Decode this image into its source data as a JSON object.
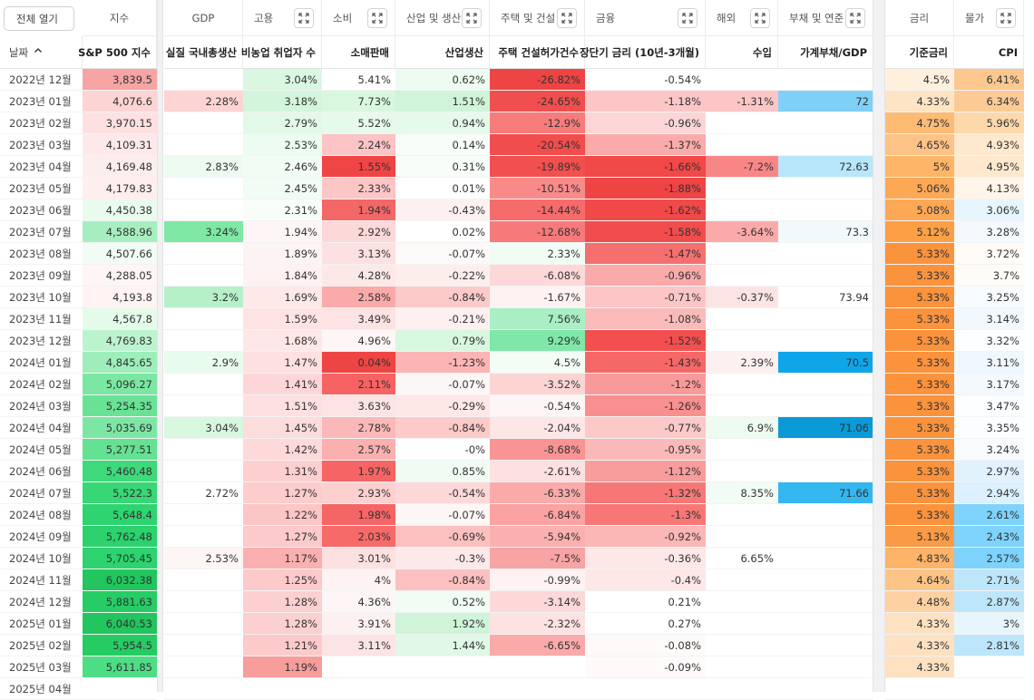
{
  "toolbar": {
    "open_all_label": "전체 열기"
  },
  "groups": [
    {
      "label": "지수",
      "expand": false
    },
    {
      "label": "GDP",
      "expand": false
    },
    {
      "label": "고용",
      "expand": true
    },
    {
      "label": "소비",
      "expand": true
    },
    {
      "label": "산업 및 생산",
      "expand": true
    },
    {
      "label": "주택 및 건설",
      "expand": true
    },
    {
      "label": "금융",
      "expand": true
    },
    {
      "label": "해외",
      "expand": true
    },
    {
      "label": "부채 및 연준",
      "expand": true
    },
    {
      "label": "금리",
      "expand": false
    },
    {
      "label": "물가",
      "expand": true
    }
  ],
  "columns": [
    "날짜",
    "S&P 500 지수",
    "실질 국내총생산",
    "비농업 취업자 수",
    "소매판매",
    "산업생산",
    "주택 건설허가건수",
    "장단기 금리 (10년-3개월)",
    "수입",
    "가계부채/GDP",
    "기준금리",
    "CPI"
  ],
  "sort_icon": "chevron-up-icon",
  "rows": [
    [
      "2022년 12월",
      "3,839.5",
      "",
      "3.04%",
      "5.41%",
      "0.62%",
      "-26.82%",
      "-0.54%",
      "",
      "",
      "4.5%",
      "6.41%"
    ],
    [
      "2023년 01월",
      "4,076.6",
      "2.28%",
      "3.18%",
      "7.73%",
      "1.51%",
      "-24.65%",
      "-1.18%",
      "-1.31%",
      "72",
      "4.33%",
      "6.34%"
    ],
    [
      "2023년 02월",
      "3,970.15",
      "",
      "2.79%",
      "5.52%",
      "0.94%",
      "-12.9%",
      "-0.96%",
      "",
      "",
      "4.75%",
      "5.96%"
    ],
    [
      "2023년 03월",
      "4,109.31",
      "",
      "2.53%",
      "2.24%",
      "0.14%",
      "-20.54%",
      "-1.37%",
      "",
      "",
      "4.65%",
      "4.93%"
    ],
    [
      "2023년 04월",
      "4,169.48",
      "2.83%",
      "2.46%",
      "1.55%",
      "0.31%",
      "-19.89%",
      "-1.66%",
      "-7.2%",
      "72.63",
      "5%",
      "4.95%"
    ],
    [
      "2023년 05월",
      "4,179.83",
      "",
      "2.45%",
      "2.33%",
      "0.01%",
      "-10.51%",
      "-1.88%",
      "",
      "",
      "5.06%",
      "4.13%"
    ],
    [
      "2023년 06월",
      "4,450.38",
      "",
      "2.31%",
      "1.94%",
      "-0.43%",
      "-14.44%",
      "-1.62%",
      "",
      "",
      "5.08%",
      "3.06%"
    ],
    [
      "2023년 07월",
      "4,588.96",
      "3.24%",
      "1.94%",
      "2.92%",
      "0.02%",
      "-12.68%",
      "-1.58%",
      "-3.64%",
      "73.3",
      "5.12%",
      "3.28%"
    ],
    [
      "2023년 08월",
      "4,507.66",
      "",
      "1.89%",
      "3.13%",
      "-0.07%",
      "2.33%",
      "-1.47%",
      "",
      "",
      "5.33%",
      "3.72%"
    ],
    [
      "2023년 09월",
      "4,288.05",
      "",
      "1.84%",
      "4.28%",
      "-0.22%",
      "-6.08%",
      "-0.96%",
      "",
      "",
      "5.33%",
      "3.7%"
    ],
    [
      "2023년 10월",
      "4,193.8",
      "3.2%",
      "1.69%",
      "2.58%",
      "-0.84%",
      "-1.67%",
      "-0.71%",
      "-0.37%",
      "73.94",
      "5.33%",
      "3.25%"
    ],
    [
      "2023년 11월",
      "4,567.8",
      "",
      "1.59%",
      "3.49%",
      "-0.21%",
      "7.56%",
      "-1.08%",
      "",
      "",
      "5.33%",
      "3.14%"
    ],
    [
      "2023년 12월",
      "4,769.83",
      "",
      "1.68%",
      "4.96%",
      "0.79%",
      "9.29%",
      "-1.52%",
      "",
      "",
      "5.33%",
      "3.32%"
    ],
    [
      "2024년 01월",
      "4,845.65",
      "2.9%",
      "1.47%",
      "0.04%",
      "-1.23%",
      "4.5%",
      "-1.43%",
      "2.39%",
      "70.5",
      "5.33%",
      "3.11%"
    ],
    [
      "2024년 02월",
      "5,096.27",
      "",
      "1.41%",
      "2.11%",
      "-0.07%",
      "-3.52%",
      "-1.2%",
      "",
      "",
      "5.33%",
      "3.17%"
    ],
    [
      "2024년 03월",
      "5,254.35",
      "",
      "1.51%",
      "3.63%",
      "-0.29%",
      "-0.54%",
      "-1.26%",
      "",
      "",
      "5.33%",
      "3.47%"
    ],
    [
      "2024년 04월",
      "5,035.69",
      "3.04%",
      "1.45%",
      "2.78%",
      "-0.84%",
      "-2.04%",
      "-0.77%",
      "6.9%",
      "71.06",
      "5.33%",
      "3.35%"
    ],
    [
      "2024년 05월",
      "5,277.51",
      "",
      "1.42%",
      "2.57%",
      "-0%",
      "-8.68%",
      "-0.95%",
      "",
      "",
      "5.33%",
      "3.24%"
    ],
    [
      "2024년 06월",
      "5,460.48",
      "",
      "1.31%",
      "1.97%",
      "0.85%",
      "-2.61%",
      "-1.12%",
      "",
      "",
      "5.33%",
      "2.97%"
    ],
    [
      "2024년 07월",
      "5,522.3",
      "2.72%",
      "1.27%",
      "2.93%",
      "-0.54%",
      "-6.33%",
      "-1.32%",
      "8.35%",
      "71.66",
      "5.33%",
      "2.94%"
    ],
    [
      "2024년 08월",
      "5,648.4",
      "",
      "1.22%",
      "1.98%",
      "-0.07%",
      "-6.84%",
      "-1.3%",
      "",
      "",
      "5.33%",
      "2.61%"
    ],
    [
      "2024년 09월",
      "5,762.48",
      "",
      "1.27%",
      "2.03%",
      "-0.69%",
      "-5.94%",
      "-0.92%",
      "",
      "",
      "5.13%",
      "2.43%"
    ],
    [
      "2024년 10월",
      "5,705.45",
      "2.53%",
      "1.17%",
      "3.01%",
      "-0.3%",
      "-7.5%",
      "-0.36%",
      "6.65%",
      "",
      "4.83%",
      "2.57%"
    ],
    [
      "2024년 11월",
      "6,032.38",
      "",
      "1.25%",
      "4%",
      "-0.84%",
      "-0.99%",
      "-0.4%",
      "",
      "",
      "4.64%",
      "2.71%"
    ],
    [
      "2024년 12월",
      "5,881.63",
      "",
      "1.28%",
      "4.36%",
      "0.52%",
      "-3.14%",
      "0.21%",
      "",
      "",
      "4.48%",
      "2.87%"
    ],
    [
      "2025년 01월",
      "6,040.53",
      "",
      "1.28%",
      "3.91%",
      "1.92%",
      "-2.32%",
      "0.27%",
      "",
      "",
      "4.33%",
      "3%"
    ],
    [
      "2025년 02월",
      "5,954.5",
      "",
      "1.21%",
      "3.11%",
      "1.44%",
      "-6.65%",
      "-0.08%",
      "",
      "",
      "4.33%",
      "2.81%"
    ],
    [
      "2025년 03월",
      "5,611.85",
      "",
      "1.19%",
      "",
      "",
      "",
      "-0.09%",
      "",
      "",
      "4.33%",
      ""
    ],
    [
      "2025년 04월",
      "",
      "",
      "",
      "",
      "",
      "",
      "",
      "",
      "",
      "",
      ""
    ]
  ],
  "colors": [
    [
      "",
      "#f6a4a4",
      "",
      "#d9f7e1",
      "",
      "#edfbf0",
      "#ef4444",
      "",
      "",
      "",
      "#fef0dd",
      "#fcc88f"
    ],
    [
      "",
      "#fcd4d4",
      "#fcd4d4",
      "#d2f5db",
      "#d8f7df",
      "#cff4d9",
      "#f14f4f",
      "#fcc6c6",
      "#fcc6c6",
      "#7fd0f6",
      "#fde4c4",
      "#fccb95"
    ],
    [
      "",
      "#fee0e0",
      "",
      "#e3f9e8",
      "#e6faeb",
      "#e6faeb",
      "#f87c7c",
      "#fcd6d6",
      "",
      "",
      "#fdbb74",
      "#fdd8ab"
    ],
    [
      "",
      "#fde9e9",
      "",
      "#ecfcf0",
      "#fcc4c4",
      "#f9fdfa",
      "#f24d4d",
      "#fbaaaa",
      "",
      "",
      "#fdc286",
      "#fee8ce"
    ],
    [
      "",
      "#fdeeee",
      "#ecfaef",
      "#f1fcf4",
      "#ef4545",
      "#f7fdf8",
      "#f24f4f",
      "#f14848",
      "#f98686",
      "#b8e6fb",
      "#fdb568",
      "#fee8ce"
    ],
    [
      "",
      "#feeeee",
      "",
      "#f1fcf4",
      "#fdc6c6",
      "",
      "#f88a8a",
      "#ef4444",
      "",
      "",
      "#fda855",
      "#fff5e8"
    ],
    [
      "",
      "#e8fbec",
      "",
      "#f8fdf9",
      "#f36767",
      "#fdf0f0",
      "#f66b6b",
      "#f14848",
      "",
      "",
      "#fda855",
      "#e7f5fd"
    ],
    [
      "",
      "#a6eec0",
      "#7ee8a4",
      "#fef6f6",
      "#fdd8d8",
      "",
      "#f67a7a",
      "#f14c4c",
      "#fbaaaa",
      "#f2f9fd",
      "#fd9f44",
      "#f4f9fe"
    ],
    [
      "",
      "#f1fcf4",
      "",
      "#fef3f3",
      "#fde0e0",
      "#fdf9f9",
      "#f1fcf4",
      "#f66f6f",
      "",
      "",
      "#fb923c",
      "#fffbf6"
    ],
    [
      "",
      "#fff5f5",
      "",
      "#fef1f1",
      "#fde8e8",
      "#fdeeee",
      "#fdd8d8",
      "#fbaaaa",
      "",
      "",
      "#fb923c",
      "#fffbf6"
    ],
    [
      "",
      "#fff3f3",
      "#b6f0c9",
      "#fee8e8",
      "#fbaaaa",
      "#fdcaca",
      "#fef2f2",
      "#fcc6c6",
      "#fde4e4",
      "",
      "#fb923c",
      "#f7fbfe"
    ],
    [
      "",
      "#e5fbea",
      "",
      "#fee3e3",
      "#fde3e3",
      "#fdf0f0",
      "#a9eec4",
      "#fbbaba",
      "",
      "",
      "#fb923c",
      "#f2f9fe"
    ],
    [
      "",
      "#bcf3cf",
      "",
      "#fee7e7",
      "#fef6f6",
      "#d8f7df",
      "#7fe7a7",
      "#f34f4f",
      "",
      "",
      "#fb923c",
      "#fdfeff"
    ],
    [
      "",
      "#9deebb",
      "#e8fbec",
      "#fee0e0",
      "#ef4444",
      "#fcb4b4",
      "#f3fcf5",
      "#f66767",
      "#fdf0f0",
      "#0ea5e9",
      "#fb923c",
      "#eff7fe"
    ],
    [
      "",
      "#7ce6a3",
      "",
      "#fdd7d7",
      "#f76363",
      "#fdf6f6",
      "#fdd4d4",
      "#f99a9a",
      "",
      "",
      "#fb923c",
      "#f4f9fe"
    ],
    [
      "",
      "#6ae295",
      "",
      "#fee0e0",
      "#fde4e4",
      "#fde7e7",
      "#fef6f6",
      "#f89090",
      "",
      "",
      "#fb923c",
      "#fcfeff"
    ],
    [
      "",
      "#7de6a4",
      "#d8f7df",
      "#fddcdc",
      "#fbb8b8",
      "#fdcaca",
      "#fde6e6",
      "#fcc8c8",
      "#eefbf1",
      "#0a9ad7",
      "#fb923c",
      "#fbfdff"
    ],
    [
      "",
      "#65e192",
      "",
      "#fdd9d9",
      "#fbb0b0",
      "#fefefe",
      "#f89494",
      "#fbb8b8",
      "",
      "",
      "#fb923c",
      "#f7fbfe"
    ],
    [
      "",
      "#3ed97a",
      "",
      "#fdcfcf",
      "#f66565",
      "#f0fcf3",
      "#fde0e0",
      "#f99c9c",
      "",
      "",
      "#fb923c",
      "#e1f2fd"
    ],
    [
      "",
      "#37d776",
      "",
      "#fdcccc",
      "#fdd0d0",
      "#fdd8d8",
      "#fbaaaa",
      "#f77777",
      "#f1fcf4",
      "#34b7f1",
      "#fb923c",
      "#dcf0fd"
    ],
    [
      "",
      "#2ed470",
      "",
      "#fcc6c6",
      "#f66565",
      "#fdf6f6",
      "#fba2a2",
      "#f77777",
      "",
      "",
      "#fb923c",
      "#7dd3fc"
    ],
    [
      "",
      "#2bd26e",
      "",
      "#fccaca",
      "#f66a6a",
      "#fcc0c0",
      "#fbb0b0",
      "#fbb6b6",
      "",
      "",
      "#fb9a44",
      "#7dd3fc"
    ],
    [
      "",
      "#2cd36e",
      "#fef5f5",
      "#fab0b0",
      "#fde0e0",
      "#fde9e9",
      "#f9a4a4",
      "#fde7e7",
      "",
      "",
      "#fdb368",
      "#7dd3fc"
    ],
    [
      "",
      "#22c55e",
      "",
      "#fccaca",
      "#fef2f2",
      "#fcc0c0",
      "#fef2f2",
      "#fde7e7",
      "",
      "",
      "#fdc488",
      "#bde6fb"
    ],
    [
      "",
      "#27cc66",
      "",
      "#fcd0d0",
      "#fef6f6",
      "#f1fcf4",
      "#fdd8d8",
      "",
      "",
      "",
      "#fdd1a2",
      "#bde6fb"
    ],
    [
      "",
      "#22c55e",
      "",
      "#fcd0d0",
      "#fdf0f0",
      "#cff4d9",
      "#fde2e2",
      "",
      "",
      "",
      "#fee1c0",
      "#e7f5fd"
    ],
    [
      "",
      "#26cb64",
      "",
      "#fccaca",
      "#fde4e4",
      "#e0f8e5",
      "#fbaaaa",
      "#fefafa",
      "",
      "",
      "#fee1c0",
      "#bde6fb"
    ],
    [
      "",
      "#4edd85",
      "",
      "#f89c9c",
      "",
      "",
      "",
      "#fefafa",
      "",
      "",
      "#fee1c0",
      ""
    ],
    [
      "",
      "",
      "",
      "",
      "",
      "",
      "",
      "",
      "",
      "",
      "",
      ""
    ]
  ]
}
